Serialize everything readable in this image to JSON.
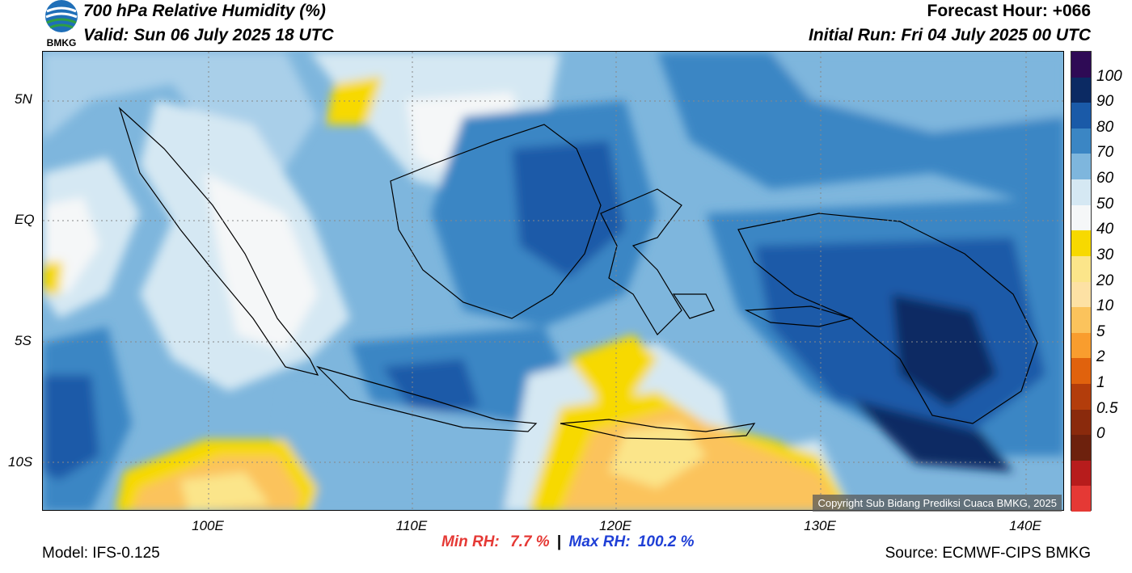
{
  "header": {
    "title": "700 hPa Relative Humidity (%)",
    "valid": "Valid: Sun 06 July 2025 18 UTC",
    "forecast_hour": "Forecast Hour: +066",
    "initial_run": "Initial Run: Fri 04 July 2025 00 UTC"
  },
  "logo": {
    "text": "BMKG",
    "icon": "bmkg-logo-icon"
  },
  "axes": {
    "lat_labels": [
      "5N",
      "EQ",
      "5S",
      "10S"
    ],
    "lon_labels": [
      "100E",
      "110E",
      "120E",
      "130E",
      "140E"
    ]
  },
  "colorbar": {
    "labels": [
      "100",
      "90",
      "80",
      "70",
      "60",
      "50",
      "40",
      "30",
      "20",
      "10",
      "5",
      "2",
      "1",
      "0.5",
      "0"
    ],
    "colors": [
      "#2e0a55",
      "#0b2a63",
      "#1a5aa8",
      "#3b86c4",
      "#7eb6dd",
      "#d5e8f3",
      "#f5f7f8",
      "#f7d900",
      "#fbe58a",
      "#fde1a4",
      "#fbc35c",
      "#f99d2e",
      "#e0620d",
      "#b33d0b",
      "#8a2a0c",
      "#6d210d",
      "#b71c1c",
      "#e53935"
    ]
  },
  "stats": {
    "min_label": "Min RH:",
    "min_value": "7.7 %",
    "separator": "|",
    "max_label": "Max RH:",
    "max_value": "100.2 %",
    "min_color": "#e53935",
    "max_color": "#1f3fd6"
  },
  "footer": {
    "model": "Model: IFS-0.125",
    "source": "Source: ECMWF-CIPS BMKG"
  },
  "copyright": "Copyright Sub Bidang Prediksi Cuaca BMKG, 2025"
}
